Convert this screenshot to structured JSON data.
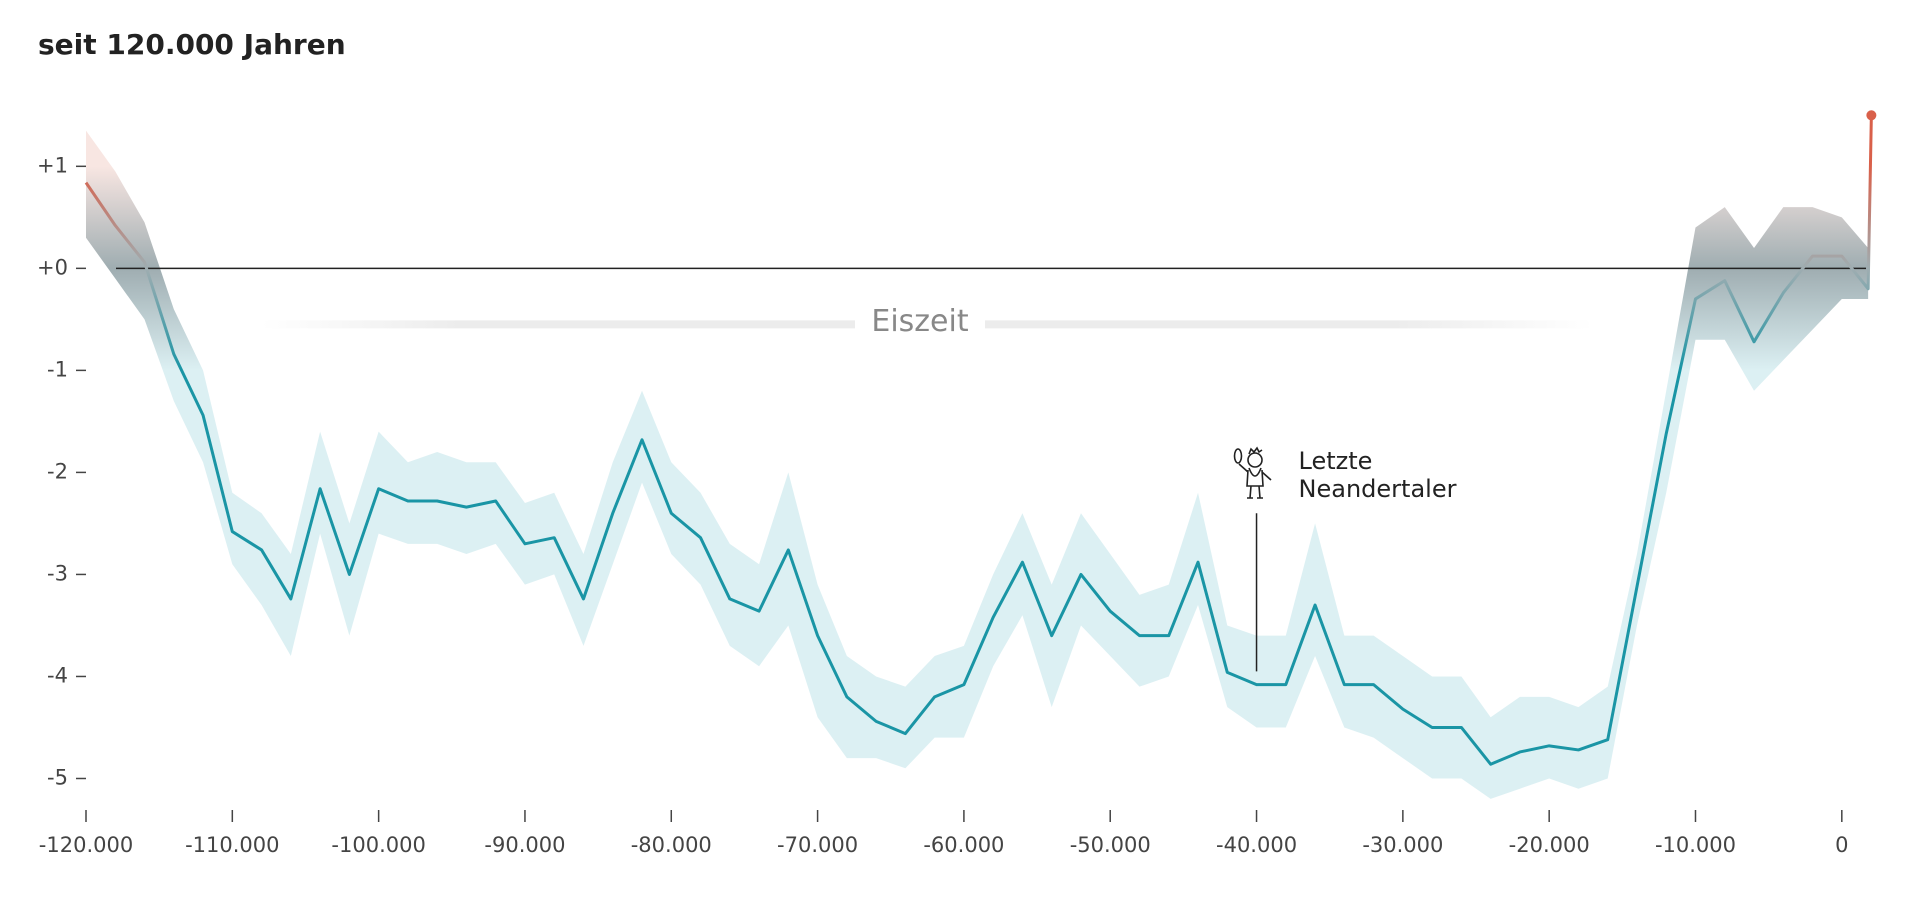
{
  "chart_data": {
    "type": "line",
    "title": "seit 120.000 Jahren",
    "x": [
      -120000,
      -118000,
      -116000,
      -114000,
      -112000,
      -110000,
      -108000,
      -106000,
      -104000,
      -102000,
      -100000,
      -98000,
      -96000,
      -94000,
      -92000,
      -90000,
      -88000,
      -86000,
      -84000,
      -82000,
      -80000,
      -78000,
      -76000,
      -74000,
      -72000,
      -70000,
      -68000,
      -66000,
      -64000,
      -62000,
      -60000,
      -58000,
      -56000,
      -54000,
      -52000,
      -50000,
      -48000,
      -46000,
      -44000,
      -42000,
      -40000,
      -38000,
      -36000,
      -34000,
      -32000,
      -30000,
      -28000,
      -26000,
      -24000,
      -22000,
      -20000,
      -18000,
      -16000,
      -14000,
      -12000,
      -10000,
      -8000,
      -6000,
      -4000,
      -2000,
      0,
      1800,
      2020
    ],
    "series": [
      {
        "color": "#1a95a5",
        "warm_color": "#d9604a",
        "values": [
          0.84,
          0.42,
          0.06,
          -0.84,
          -1.44,
          -2.58,
          -2.76,
          -3.24,
          -2.16,
          -3.0,
          -2.16,
          -2.28,
          -2.28,
          -2.34,
          -2.28,
          -2.7,
          -2.64,
          -3.24,
          -2.4,
          -1.68,
          -2.4,
          -2.64,
          -3.24,
          -3.36,
          -2.76,
          -3.6,
          -4.2,
          -4.44,
          -4.56,
          -4.2,
          -4.08,
          -3.42,
          -2.88,
          -3.6,
          -3.0,
          -3.36,
          -3.6,
          -3.6,
          -2.88,
          -3.96,
          -4.08,
          -4.08,
          -3.3,
          -4.08,
          -4.08,
          -4.32,
          -4.5,
          -4.5,
          -4.86,
          -4.74,
          -4.68,
          -4.72,
          -4.62,
          -3.12,
          -1.62,
          -0.3,
          -0.12,
          -0.72,
          -0.24,
          0.12,
          0.12,
          -0.2,
          1.5
        ]
      }
    ],
    "band": {
      "color": "#dcf0f3",
      "warm_color": "#f8e6e2",
      "upper": [
        1.35,
        0.95,
        0.45,
        -0.4,
        -1.0,
        -2.2,
        -2.4,
        -2.8,
        -1.6,
        -2.5,
        -1.6,
        -1.9,
        -1.8,
        -1.9,
        -1.9,
        -2.3,
        -2.2,
        -2.8,
        -1.9,
        -1.2,
        -1.9,
        -2.2,
        -2.7,
        -2.9,
        -2.0,
        -3.1,
        -3.8,
        -4.0,
        -4.1,
        -3.8,
        -3.7,
        -3.0,
        -2.4,
        -3.1,
        -2.4,
        -2.8,
        -3.2,
        -3.1,
        -2.2,
        -3.5,
        -3.6,
        -3.6,
        -2.5,
        -3.6,
        -3.6,
        -3.8,
        -4.0,
        -4.0,
        -4.4,
        -4.2,
        -4.2,
        -4.3,
        -4.1,
        -2.8,
        -1.2,
        0.4,
        0.6,
        0.2,
        0.6,
        0.6,
        0.5,
        0.2,
        null
      ],
      "lower": [
        0.3,
        -0.1,
        -0.5,
        -1.3,
        -1.9,
        -2.9,
        -3.3,
        -3.8,
        -2.6,
        -3.6,
        -2.6,
        -2.7,
        -2.7,
        -2.8,
        -2.7,
        -3.1,
        -3.0,
        -3.7,
        -2.9,
        -2.1,
        -2.8,
        -3.1,
        -3.7,
        -3.9,
        -3.5,
        -4.4,
        -4.8,
        -4.8,
        -4.9,
        -4.6,
        -4.6,
        -3.9,
        -3.4,
        -4.3,
        -3.5,
        -3.8,
        -4.1,
        -4.0,
        -3.3,
        -4.3,
        -4.5,
        -4.5,
        -3.8,
        -4.5,
        -4.6,
        -4.8,
        -5.0,
        -5.0,
        -5.2,
        -5.1,
        -5.0,
        -5.1,
        -5.0,
        -3.5,
        -2.2,
        -0.7,
        -0.7,
        -1.2,
        -0.9,
        -0.6,
        -0.3,
        -0.3,
        null
      ]
    },
    "xlim": [
      -120000,
      2200
    ],
    "ylim": [
      -5.25,
      1.65
    ],
    "xticks": [
      {
        "value": -120000,
        "label": "-120.000"
      },
      {
        "value": -110000,
        "label": "-110.000"
      },
      {
        "value": -100000,
        "label": "-100.000"
      },
      {
        "value": -90000,
        "label": "-90.000"
      },
      {
        "value": -80000,
        "label": "-80.000"
      },
      {
        "value": -70000,
        "label": "-70.000"
      },
      {
        "value": -60000,
        "label": "-60.000"
      },
      {
        "value": -50000,
        "label": "-50.000"
      },
      {
        "value": -40000,
        "label": "-40.000"
      },
      {
        "value": -30000,
        "label": "-30.000"
      },
      {
        "value": -20000,
        "label": "-20.000"
      },
      {
        "value": -10000,
        "label": "-10.000"
      },
      0
    ],
    "yticks": [
      {
        "value": 1,
        "label": "+1"
      },
      {
        "value": 0,
        "label": "+0"
      },
      -1,
      -2,
      -3,
      -4,
      -5
    ],
    "annotations": [
      {
        "text": "Eiszeit"
      },
      {
        "text": [
          "Letzte",
          "Neandertaler"
        ],
        "x": -40000
      }
    ]
  }
}
